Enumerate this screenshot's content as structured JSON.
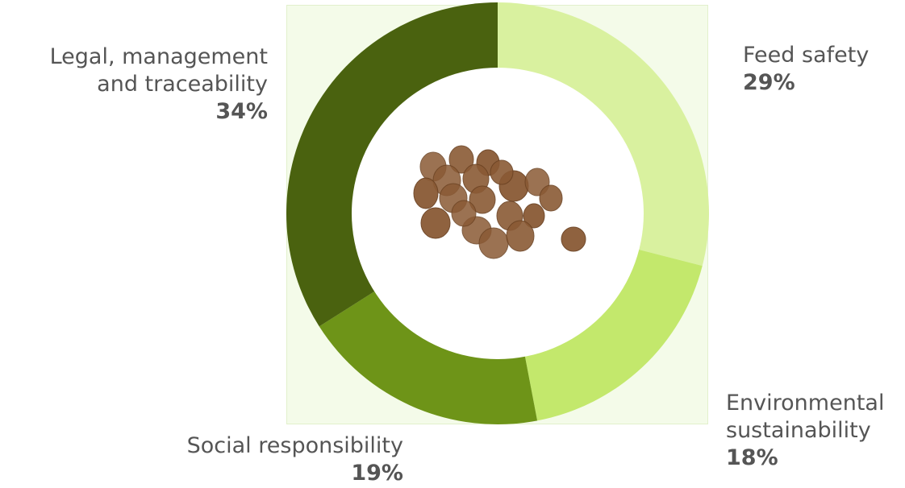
{
  "chart_data": {
    "type": "pie",
    "variant": "donut",
    "title": "",
    "categories": [
      "Feed safety",
      "Environmental sustainability",
      "Social responsibility",
      "Legal, management and traceability"
    ],
    "values": [
      29,
      18,
      19,
      34
    ],
    "unit": "%",
    "colors": [
      "#d9f19f",
      "#c3e86c",
      "#6e9418",
      "#4a620f"
    ],
    "legend": "none"
  },
  "labels": {
    "feed": {
      "line1": "Feed safety",
      "line2": "",
      "pct": "29%"
    },
    "env": {
      "line1": "Environmental",
      "line2": "sustainability",
      "pct": "18%"
    },
    "social": {
      "line1": "Social responsibility",
      "line2": "",
      "pct": "19%"
    },
    "legal": {
      "line1": "Legal, management",
      "line2": "and traceability",
      "pct": "34%"
    }
  },
  "center_image": {
    "icon": "feed-pellets-icon",
    "color": "#8a5a35"
  }
}
